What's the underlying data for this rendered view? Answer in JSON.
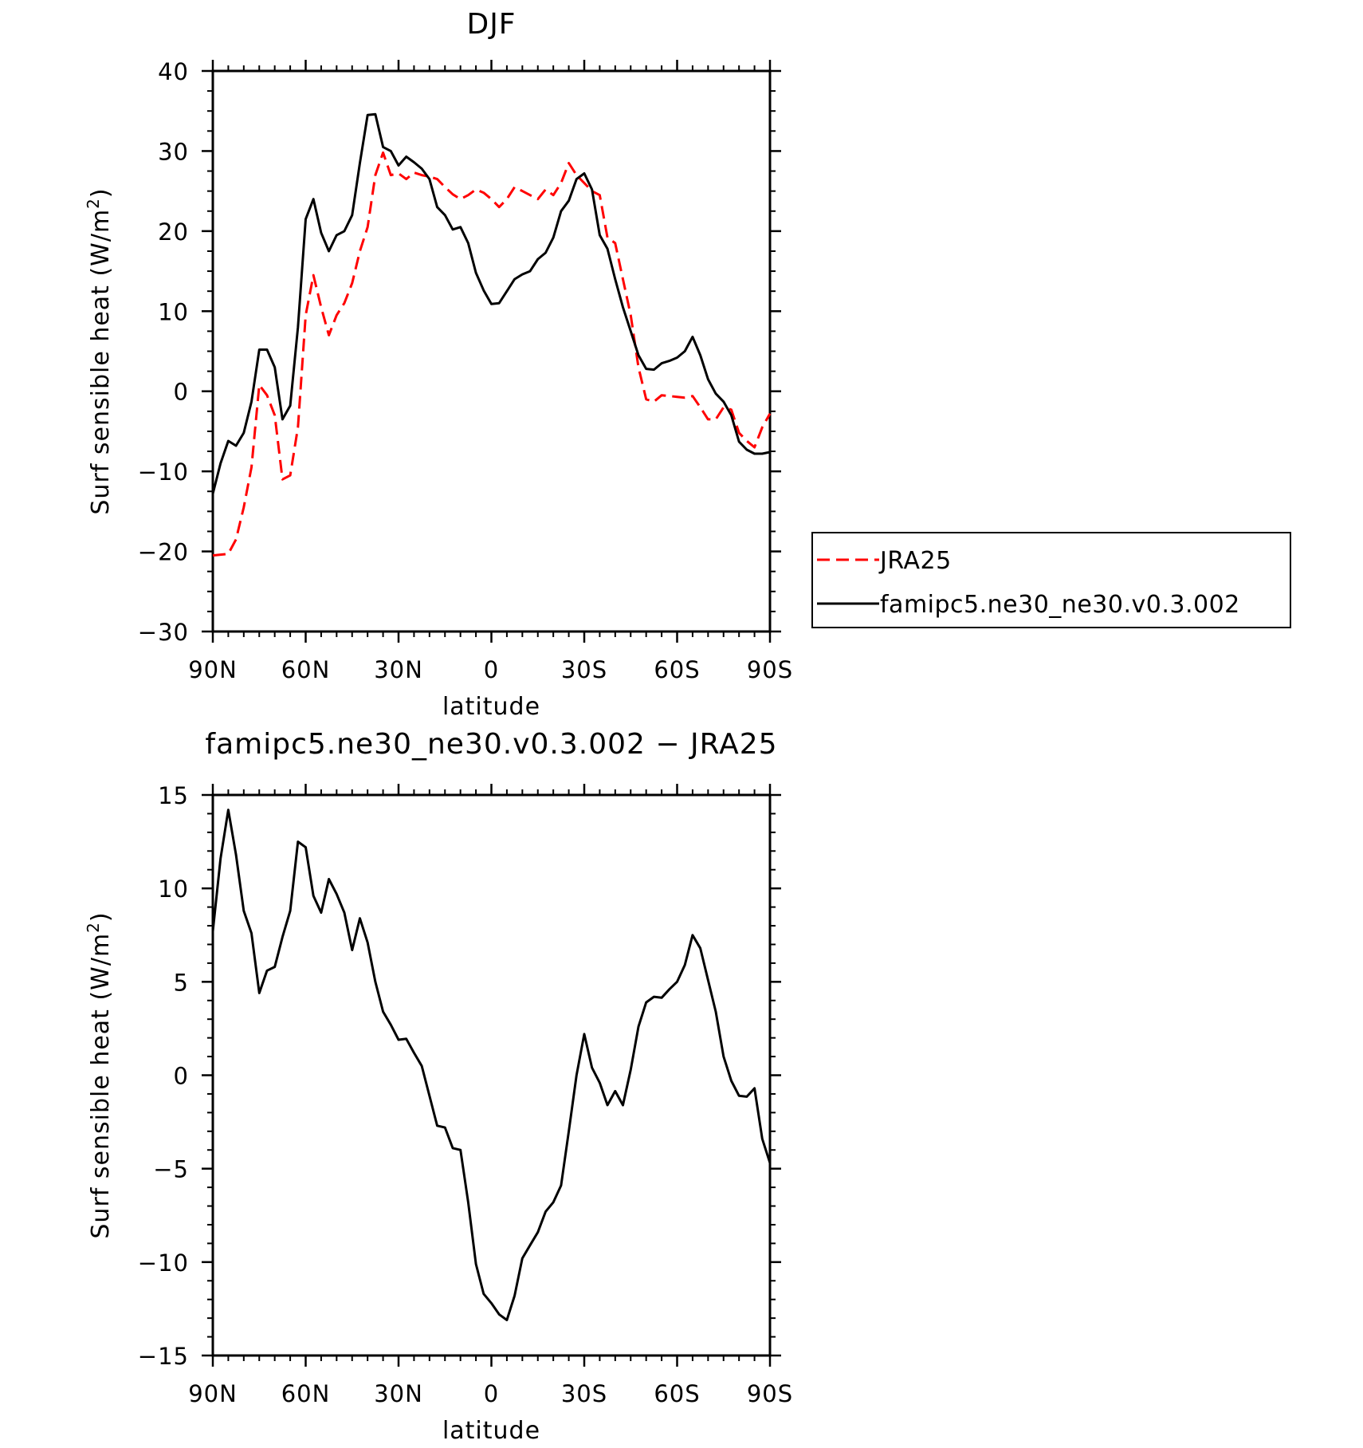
{
  "chart_data": [
    {
      "type": "line",
      "title": "DJF",
      "xlabel": "latitude",
      "ylabel": "Surf sensible heat (W/m²)",
      "ylabel_parts": [
        "Surf sensible heat (W/m",
        "2",
        ")"
      ],
      "xlim": [
        90,
        -90
      ],
      "ylim": [
        -30,
        40
      ],
      "xticks": [
        90,
        60,
        30,
        0,
        -30,
        -60,
        -90
      ],
      "xtick_labels": [
        "90N",
        "60N",
        "30N",
        "0",
        "30S",
        "60S",
        "90S"
      ],
      "yticks": [
        -30,
        -20,
        -10,
        0,
        10,
        20,
        30,
        40
      ],
      "ytick_labels": [
        "−30",
        "−20",
        "−10",
        "0",
        "10",
        "20",
        "30",
        "40"
      ],
      "grid": false,
      "legend_position": "right",
      "series": [
        {
          "name": "JRA25",
          "color": "#ff0000",
          "dash": "dashed",
          "x": [
            90,
            87.5,
            85,
            82.5,
            80,
            77.5,
            75,
            72.5,
            70,
            67.5,
            65,
            62.5,
            60,
            57.5,
            55,
            52.5,
            50,
            47.5,
            45,
            42.5,
            40,
            37.5,
            35,
            32.5,
            30,
            27.5,
            25,
            22.5,
            20,
            17.5,
            15,
            12.5,
            10,
            7.5,
            5,
            2.5,
            0,
            -2.5,
            -5,
            -7.5,
            -10,
            -12.5,
            -15,
            -17.5,
            -20,
            -22.5,
            -25,
            -27.5,
            -30,
            -32.5,
            -35,
            -37.5,
            -40,
            -42.5,
            -45,
            -47.5,
            -50,
            -52.5,
            -55,
            -57.5,
            -60,
            -62.5,
            -65,
            -67.5,
            -70,
            -72.5,
            -75,
            -77.5,
            -80,
            -82.5,
            -85,
            -87.5,
            -90
          ],
          "y": [
            -20.5,
            -20.4,
            -20.3,
            -18.5,
            -14.5,
            -9.5,
            0.8,
            -0.5,
            -3.0,
            -11.0,
            -10.5,
            -4.5,
            9.5,
            14.5,
            10.5,
            7.0,
            9.5,
            11.0,
            13.5,
            17.5,
            20.5,
            27.0,
            29.8,
            27.0,
            27.2,
            26.5,
            27.3,
            27.0,
            26.8,
            26.5,
            25.5,
            24.6,
            24.0,
            24.5,
            25.2,
            24.8,
            24.0,
            23.0,
            24.0,
            25.5,
            25.0,
            24.5,
            24.0,
            25.2,
            24.5,
            26.0,
            28.5,
            27.0,
            26.0,
            25.0,
            24.5,
            19.2,
            18.5,
            14.0,
            9.5,
            3.0,
            -1.0,
            -1.3,
            -0.5,
            -0.6,
            -0.7,
            -0.8,
            -0.6,
            -2.0,
            -3.5,
            -3.5,
            -2.0,
            -2.3,
            -5.2,
            -6.2,
            -7.0,
            -4.5,
            -2.8
          ]
        },
        {
          "name": "famipc5.ne30_ne30.v0.3.002",
          "color": "#000000",
          "dash": "solid",
          "x": [
            90,
            87.5,
            85,
            82.5,
            80,
            77.5,
            75,
            72.5,
            70,
            67.5,
            65,
            62.5,
            60,
            57.5,
            55,
            52.5,
            50,
            47.5,
            45,
            42.5,
            40,
            37.5,
            35,
            32.5,
            30,
            27.5,
            25,
            22.5,
            20,
            17.5,
            15,
            12.5,
            10,
            7.5,
            5,
            2.5,
            0,
            -2.5,
            -5,
            -7.5,
            -10,
            -12.5,
            -15,
            -17.5,
            -20,
            -22.5,
            -25,
            -27.5,
            -30,
            -32.5,
            -35,
            -37.5,
            -40,
            -42.5,
            -45,
            -47.5,
            -50,
            -52.5,
            -55,
            -57.5,
            -60,
            -62.5,
            -65,
            -67.5,
            -70,
            -72.5,
            -75,
            -77.5,
            -80,
            -82.5,
            -85,
            -87.5,
            -90
          ],
          "y": [
            -12.8,
            -9.0,
            -6.2,
            -6.8,
            -5.2,
            -1.3,
            5.2,
            5.2,
            3.0,
            -3.5,
            -1.8,
            8.0,
            21.5,
            24.0,
            19.8,
            17.5,
            19.5,
            20.0,
            22.0,
            28.5,
            34.5,
            34.6,
            30.5,
            30.0,
            28.2,
            29.3,
            28.6,
            27.8,
            26.5,
            23.0,
            22.0,
            20.2,
            20.5,
            18.5,
            14.8,
            12.6,
            10.9,
            11.0,
            12.5,
            14.0,
            14.6,
            15.0,
            16.5,
            17.3,
            19.2,
            22.5,
            23.8,
            26.5,
            27.2,
            25.2,
            19.5,
            17.8,
            14.0,
            10.5,
            7.5,
            4.5,
            2.8,
            2.7,
            3.5,
            3.8,
            4.2,
            5.0,
            6.8,
            4.5,
            1.5,
            -0.3,
            -1.3,
            -3.0,
            -6.3,
            -7.3,
            -7.8,
            -7.8,
            -7.6
          ]
        }
      ]
    },
    {
      "type": "line",
      "title": "famipc5.ne30_ne30.v0.3.002 − JRA25",
      "xlabel": "latitude",
      "ylabel": "Surf sensible heat (W/m²)",
      "ylabel_parts": [
        "Surf sensible heat (W/m",
        "2",
        ")"
      ],
      "xlim": [
        90,
        -90
      ],
      "ylim": [
        -15,
        15
      ],
      "xticks": [
        90,
        60,
        30,
        0,
        -30,
        -60,
        -90
      ],
      "xtick_labels": [
        "90N",
        "60N",
        "30N",
        "0",
        "30S",
        "60S",
        "90S"
      ],
      "yticks": [
        -15,
        -10,
        -5,
        0,
        5,
        10,
        15
      ],
      "ytick_labels": [
        "−15",
        "−10",
        "−5",
        "0",
        "5",
        "10",
        "15"
      ],
      "grid": false,
      "series": [
        {
          "color": "#000000",
          "dash": "solid",
          "x": [
            90,
            87.5,
            85,
            82.5,
            80,
            77.5,
            75,
            72.5,
            70,
            67.5,
            65,
            62.5,
            60,
            57.5,
            55,
            52.5,
            50,
            47.5,
            45,
            42.5,
            40,
            37.5,
            35,
            32.5,
            30,
            27.5,
            25,
            22.5,
            20,
            17.5,
            15,
            12.5,
            10,
            7.5,
            5,
            2.5,
            0,
            -2.5,
            -5,
            -7.5,
            -10,
            -12.5,
            -15,
            -17.5,
            -20,
            -22.5,
            -25,
            -27.5,
            -30,
            -32.5,
            -35,
            -37.5,
            -40,
            -42.5,
            -45,
            -47.5,
            -50,
            -52.5,
            -55,
            -57.5,
            -60,
            -62.5,
            -65,
            -67.5,
            -70,
            -72.5,
            -75,
            -77.5,
            -80,
            -82.5,
            -85,
            -87.5,
            -90
          ],
          "y": [
            7.7,
            11.6,
            14.2,
            11.8,
            8.8,
            7.6,
            4.4,
            5.6,
            5.8,
            7.4,
            8.8,
            12.5,
            12.2,
            9.6,
            8.7,
            10.5,
            9.7,
            8.7,
            6.7,
            8.4,
            7.1,
            5.0,
            3.4,
            2.7,
            1.9,
            1.95,
            1.2,
            0.5,
            -1.1,
            -2.7,
            -2.8,
            -3.9,
            -4.0,
            -6.8,
            -10.1,
            -11.7,
            -12.2,
            -12.8,
            -13.1,
            -11.8,
            -9.8,
            -9.1,
            -8.4,
            -7.3,
            -6.8,
            -5.9,
            -3.0,
            0.0,
            2.2,
            0.4,
            -0.4,
            -1.6,
            -0.85,
            -1.6,
            0.3,
            2.6,
            3.9,
            4.2,
            4.15,
            4.6,
            5.0,
            5.9,
            7.5,
            6.8,
            5.1,
            3.4,
            1.0,
            -0.3,
            -1.1,
            -1.15,
            -0.7,
            -3.4,
            -4.7
          ]
        }
      ]
    }
  ]
}
